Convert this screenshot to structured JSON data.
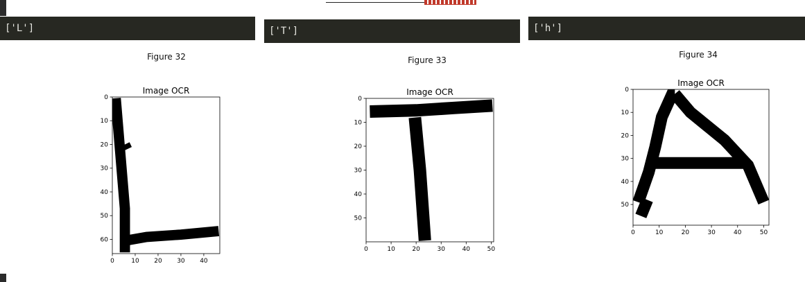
{
  "outputs": [
    {
      "text": "['L']",
      "caption": "Figure 32",
      "chart_data": {
        "type": "heatmap",
        "title": "Image OCR",
        "xlabel": "",
        "ylabel": "",
        "xlim": [
          0,
          47
        ],
        "ylim": [
          66,
          0
        ],
        "x_ticks": [
          0,
          10,
          20,
          30,
          40
        ],
        "y_ticks": [
          0,
          10,
          20,
          30,
          40,
          50,
          60
        ],
        "grid": false,
        "colormap": "binary",
        "strokes": [
          [
            [
              1.5,
              0.5
            ],
            [
              5.5,
              47
            ],
            [
              5.5,
              65.5
            ]
          ],
          [
            [
              6,
              60.5
            ],
            [
              15,
              59
            ],
            [
              30,
              58
            ],
            [
              46.5,
              56.5
            ]
          ],
          [
            [
              5.5,
              20
            ],
            [
              6.5,
              22
            ]
          ]
        ],
        "stroke_width": 4.5
      }
    },
    {
      "text": "['T']",
      "caption": "Figure 33",
      "chart_data": {
        "type": "heatmap",
        "title": "Image OCR",
        "xlabel": "",
        "ylabel": "",
        "xlim": [
          0,
          51
        ],
        "ylim": [
          60,
          0
        ],
        "x_ticks": [
          0,
          10,
          20,
          30,
          40,
          50
        ],
        "y_ticks": [
          0,
          10,
          20,
          30,
          40,
          50
        ],
        "grid": false,
        "colormap": "binary",
        "strokes": [
          [
            [
              1.5,
              5.5
            ],
            [
              20,
              5
            ],
            [
              35,
              4
            ],
            [
              50.5,
              3
            ]
          ],
          [
            [
              19.5,
              8
            ],
            [
              21.5,
              30
            ],
            [
              23.5,
              59.5
            ]
          ]
        ],
        "stroke_width": 5
      }
    },
    {
      "text": "['h']",
      "caption": "Figure 34",
      "chart_data": {
        "type": "heatmap",
        "title": "Image OCR",
        "xlabel": "",
        "ylabel": "",
        "xlim": [
          0,
          52
        ],
        "ylim": [
          59,
          0
        ],
        "x_ticks": [
          0,
          10,
          20,
          30,
          40,
          50
        ],
        "y_ticks": [
          0,
          10,
          20,
          30,
          40,
          50
        ],
        "grid": false,
        "colormap": "binary",
        "strokes": [
          [
            [
              2,
              49
            ],
            [
              6,
              36
            ],
            [
              8.5,
              25
            ],
            [
              11,
              12
            ],
            [
              15,
              2
            ],
            [
              16,
              2
            ]
          ],
          [
            [
              16,
              2
            ],
            [
              22,
              10
            ],
            [
              35,
              22
            ],
            [
              44,
              33
            ],
            [
              50,
              49
            ]
          ],
          [
            [
              3,
              55
            ],
            [
              5.5,
              48
            ]
          ],
          [
            [
              7,
              32
            ],
            [
              44,
              32
            ]
          ]
        ],
        "stroke_width": 4.5
      }
    }
  ]
}
